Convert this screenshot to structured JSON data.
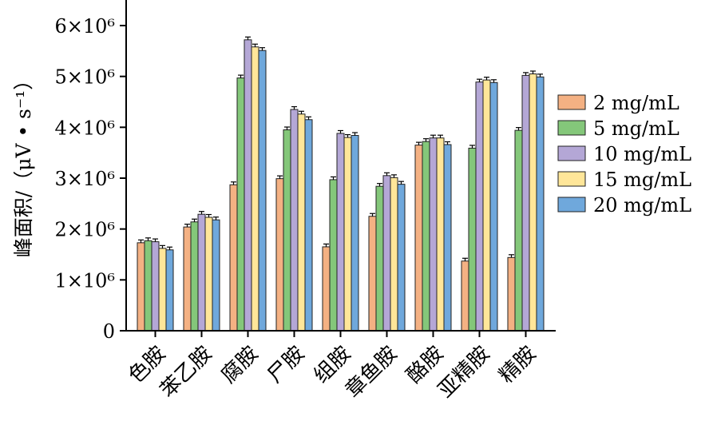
{
  "chart_data": {
    "type": "bar",
    "title": "",
    "xlabel": "",
    "ylabel": "峰面积/（μV • s⁻¹）",
    "ylim": [
      0,
      6500000
    ],
    "yticks": [
      {
        "value": 0,
        "label": "0"
      },
      {
        "value": 1000000,
        "label": "1×10⁶"
      },
      {
        "value": 2000000,
        "label": "2×10⁶"
      },
      {
        "value": 3000000,
        "label": "3×10⁶"
      },
      {
        "value": 4000000,
        "label": "4×10⁶"
      },
      {
        "value": 5000000,
        "label": "5×10⁶"
      },
      {
        "value": 6000000,
        "label": "6×10⁶"
      }
    ],
    "grid": false,
    "legend_position": "right",
    "categories": [
      "色胺",
      "苯乙胺",
      "腐胺",
      "尸胺",
      "组胺",
      "章鱼胺",
      "酪胺",
      "亚精胺",
      "精胺"
    ],
    "series": [
      {
        "name": "2 mg/mL",
        "color": "#f4b183",
        "values": [
          1730000,
          2040000,
          2870000,
          2990000,
          1650000,
          2250000,
          3650000,
          1370000,
          1440000
        ]
      },
      {
        "name": "5 mg/mL",
        "color": "#84c77a",
        "values": [
          1770000,
          2140000,
          4970000,
          3950000,
          2970000,
          2840000,
          3720000,
          3590000,
          3940000
        ]
      },
      {
        "name": "10 mg/mL",
        "color": "#b4a7d6",
        "values": [
          1750000,
          2290000,
          5720000,
          4350000,
          3880000,
          3050000,
          3790000,
          4890000,
          5020000
        ]
      },
      {
        "name": "15 mg/mL",
        "color": "#ffe699",
        "values": [
          1620000,
          2230000,
          5580000,
          4260000,
          3800000,
          3010000,
          3790000,
          4930000,
          5050000
        ]
      },
      {
        "name": "20 mg/mL",
        "color": "#6fa8dc",
        "values": [
          1590000,
          2180000,
          5510000,
          4150000,
          3840000,
          2880000,
          3660000,
          4880000,
          4990000
        ]
      }
    ]
  }
}
